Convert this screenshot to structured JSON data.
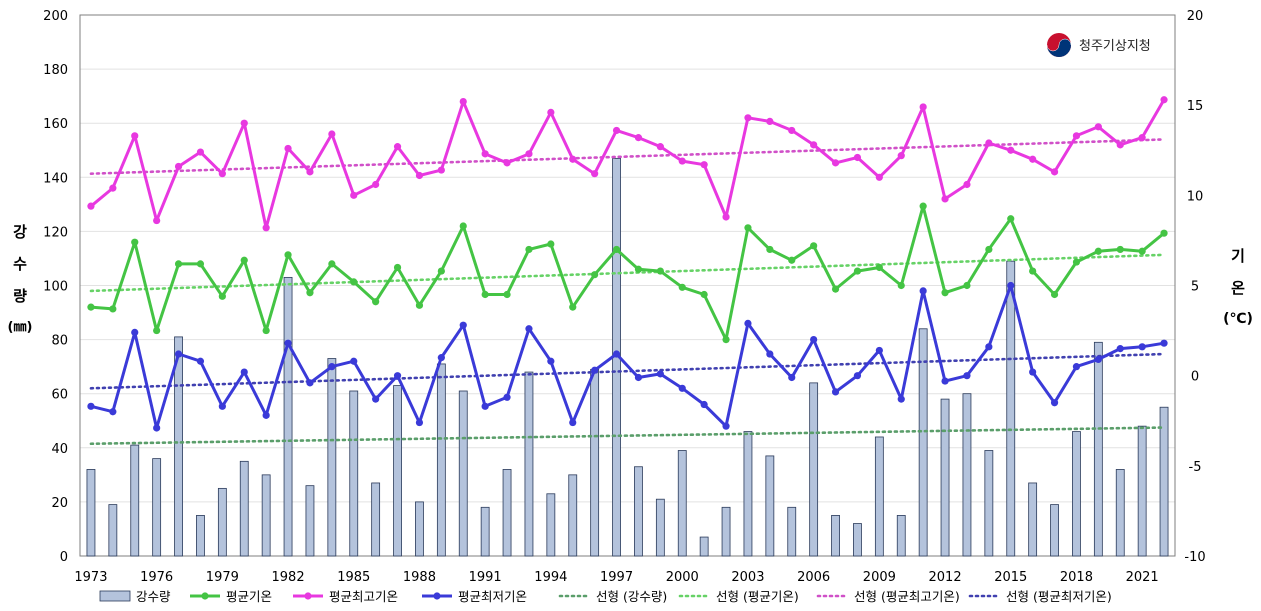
{
  "chart_data": {
    "type": "bar+line",
    "logo_text": "청주기상지청",
    "y_left_label": [
      "강",
      "수",
      "량",
      "(㎜)"
    ],
    "y_right_label": [
      "기",
      "온",
      "(℃)"
    ],
    "y_left_lim": [
      0,
      200
    ],
    "y_left_ticks": [
      0,
      20,
      40,
      60,
      80,
      100,
      120,
      140,
      160,
      180,
      200
    ],
    "y_right_lim": [
      -10,
      20
    ],
    "y_right_ticks": [
      -10,
      -5,
      0,
      5,
      10,
      15,
      20
    ],
    "x_years": [
      1973,
      1974,
      1975,
      1976,
      1977,
      1978,
      1979,
      1980,
      1981,
      1982,
      1983,
      1984,
      1985,
      1986,
      1987,
      1988,
      1989,
      1990,
      1991,
      1992,
      1993,
      1994,
      1995,
      1996,
      1997,
      1998,
      1999,
      2000,
      2001,
      2002,
      2003,
      2004,
      2005,
      2006,
      2007,
      2008,
      2009,
      2010,
      2011,
      2012,
      2013,
      2014,
      2015,
      2016,
      2017,
      2018,
      2019,
      2020,
      2021,
      2022
    ],
    "x_tick_labels": [
      "1973",
      "1976",
      "1979",
      "1982",
      "1985",
      "1988",
      "1991",
      "1994",
      "1997",
      "2000",
      "2003",
      "2006",
      "2009",
      "2012",
      "2015",
      "2018",
      "2021"
    ],
    "series": [
      {
        "name": "강수량",
        "kind": "bar",
        "axis": "left",
        "color": "#b4c3dc",
        "values": [
          32,
          19,
          41,
          36,
          81,
          15,
          25,
          35,
          30,
          103,
          26,
          73,
          61,
          27,
          63,
          20,
          71,
          61,
          18,
          32,
          68,
          23,
          30,
          69,
          147,
          33,
          21,
          39,
          7,
          18,
          46,
          37,
          18,
          64,
          15,
          12,
          44,
          15,
          84,
          58,
          60,
          39,
          109,
          27,
          19,
          46,
          79,
          32,
          48,
          55
        ]
      },
      {
        "name": "평균기온",
        "kind": "line",
        "axis": "right",
        "color": "#44c444",
        "values": [
          3.8,
          3.7,
          7.4,
          2.5,
          6.2,
          6.2,
          4.4,
          6.4,
          2.5,
          6.7,
          4.6,
          6.2,
          5.2,
          4.1,
          6.0,
          3.9,
          5.8,
          8.3,
          4.5,
          4.5,
          7.0,
          7.3,
          3.8,
          5.6,
          7.0,
          5.9,
          5.8,
          4.9,
          4.5,
          2.0,
          8.2,
          7.0,
          6.4,
          7.2,
          4.8,
          5.8,
          6.0,
          5.0,
          9.4,
          4.6,
          5.0,
          7.0,
          8.7,
          5.8,
          4.5,
          6.3,
          6.9,
          7.0,
          6.9,
          7.9
        ]
      },
      {
        "name": "평균최고기온",
        "kind": "line",
        "axis": "right",
        "color": "#e838e0",
        "values": [
          9.4,
          10.4,
          13.3,
          8.6,
          11.6,
          12.4,
          11.2,
          14.0,
          8.2,
          12.6,
          11.3,
          13.4,
          10.0,
          10.6,
          12.7,
          11.1,
          11.4,
          15.2,
          12.3,
          11.8,
          12.3,
          14.6,
          12.0,
          11.2,
          13.6,
          13.2,
          12.7,
          11.9,
          11.7,
          8.8,
          14.3,
          14.1,
          13.6,
          12.8,
          11.8,
          12.1,
          11.0,
          12.2,
          14.9,
          9.8,
          10.6,
          12.9,
          12.5,
          12.0,
          11.3,
          13.3,
          13.8,
          12.8,
          13.2,
          15.3
        ]
      },
      {
        "name": "평균최저기온",
        "kind": "line",
        "axis": "right",
        "color": "#3a3ad8",
        "values": [
          -1.7,
          -2.0,
          2.4,
          -2.9,
          1.2,
          0.8,
          -1.7,
          0.2,
          -2.2,
          1.8,
          -0.4,
          0.5,
          0.8,
          -1.3,
          0.0,
          -2.6,
          1.0,
          2.8,
          -1.7,
          -1.2,
          2.6,
          0.8,
          -2.6,
          0.3,
          1.2,
          -0.1,
          0.1,
          -0.7,
          -1.6,
          -2.8,
          2.9,
          1.2,
          -0.1,
          2.0,
          -0.9,
          0.0,
          1.4,
          -1.3,
          4.7,
          -0.3,
          0.0,
          1.6,
          5.0,
          0.2,
          -1.5,
          0.5,
          0.9,
          1.5,
          1.6,
          1.8
        ]
      },
      {
        "name": "선형 (강수량)",
        "kind": "trend",
        "axis": "left",
        "color": "#5a9e6a",
        "from": 41.5,
        "to": 47.5
      },
      {
        "name": "선형 (평균기온)",
        "kind": "trend",
        "axis": "right",
        "color": "#66d266",
        "from": 4.7,
        "to": 6.7
      },
      {
        "name": "선형 (평균최고기온)",
        "kind": "trend",
        "axis": "right",
        "color": "#d050c8",
        "from": 11.2,
        "to": 13.1
      },
      {
        "name": "선형 (평균최저기온)",
        "kind": "trend",
        "axis": "right",
        "color": "#4040b0",
        "from": -0.7,
        "to": 1.2
      }
    ]
  }
}
